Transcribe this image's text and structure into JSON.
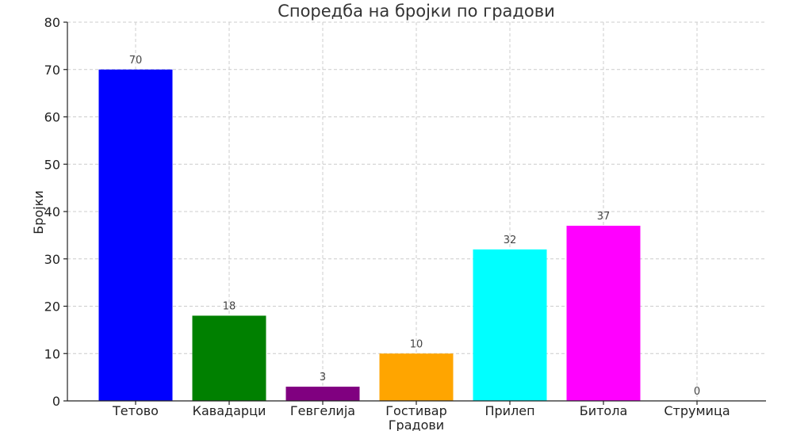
{
  "chart_data": {
    "type": "bar",
    "title": "Споредба на бројки по градови",
    "xlabel": "Градови",
    "ylabel": "Бројки",
    "categories": [
      "Тетово",
      "Кавадарци",
      "Гевгелија",
      "Гостивар",
      "Прилеп",
      "Битола",
      "Струмица"
    ],
    "values": [
      70,
      18,
      3,
      10,
      32,
      37,
      0
    ],
    "colors": [
      "#0000ff",
      "#008000",
      "#800080",
      "#ffa500",
      "#00ffff",
      "#ff00ff",
      "#ff0000"
    ],
    "ylim": [
      0,
      80
    ],
    "yticks": [
      0,
      10,
      20,
      30,
      40,
      50,
      60,
      70,
      80
    ],
    "grid": true
  }
}
